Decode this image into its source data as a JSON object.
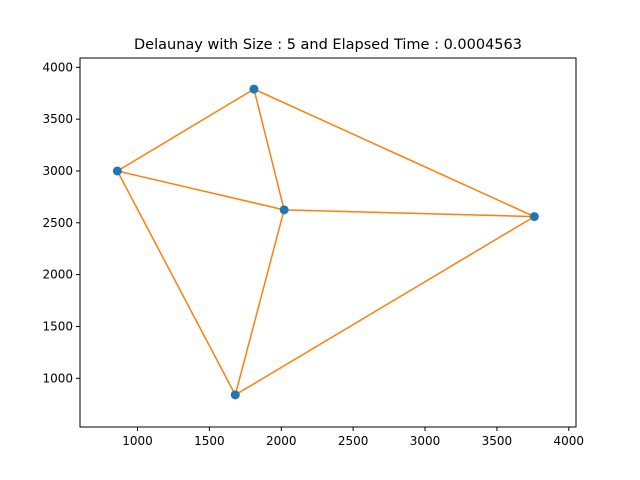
{
  "chart_data": {
    "type": "scatter",
    "title": "Delaunay with Size : 5 and Elapsed Time : 0.0004563",
    "xlabel": "",
    "ylabel": "",
    "xlim": [
      600,
      4050
    ],
    "ylim": [
      530,
      4090
    ],
    "grid": false,
    "xticks": [
      1000,
      1500,
      2000,
      2500,
      3000,
      3500,
      4000
    ],
    "yticks": [
      1000,
      1500,
      2000,
      2500,
      3000,
      3500,
      4000
    ],
    "points": [
      {
        "x": 860,
        "y": 3000
      },
      {
        "x": 1810,
        "y": 3790
      },
      {
        "x": 2020,
        "y": 2625
      },
      {
        "x": 3760,
        "y": 2560
      },
      {
        "x": 1680,
        "y": 840
      }
    ],
    "edges": [
      [
        0,
        1
      ],
      [
        1,
        3
      ],
      [
        0,
        2
      ],
      [
        1,
        2
      ],
      [
        2,
        3
      ],
      [
        0,
        4
      ],
      [
        2,
        4
      ],
      [
        4,
        3
      ]
    ],
    "point_color": "#1f77b4",
    "edge_color": "#ff7f0e"
  }
}
